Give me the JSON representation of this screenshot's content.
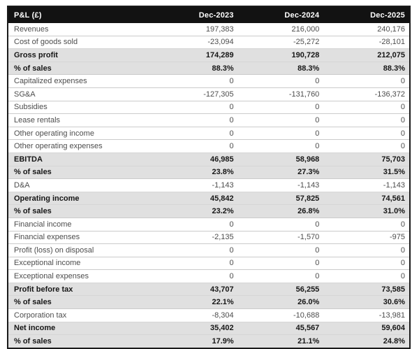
{
  "title": "P&L statement table",
  "colors": {
    "header_bg": "#121212",
    "header_text": "#ffffff",
    "highlight_row_bg": "#e0e0e0",
    "normal_text": "#4d4d4d",
    "bold_text": "#161616",
    "row_border": "#cbcbcb",
    "outer_border": "#1a1a1a"
  },
  "table": {
    "columns": [
      "P&L (£)",
      "Dec-2023",
      "Dec-2024",
      "Dec-2025"
    ],
    "rows": [
      {
        "label": "Revenues",
        "values": [
          "197,383",
          "216,000",
          "240,176"
        ],
        "highlight": false
      },
      {
        "label": "Cost of goods sold",
        "values": [
          "-23,094",
          "-25,272",
          "-28,101"
        ],
        "highlight": false
      },
      {
        "label": "Gross profit",
        "values": [
          "174,289",
          "190,728",
          "212,075"
        ],
        "highlight": true
      },
      {
        "label": "% of sales",
        "values": [
          "88.3%",
          "88.3%",
          "88.3%"
        ],
        "highlight": true
      },
      {
        "label": "Capitalized expenses",
        "values": [
          "0",
          "0",
          "0"
        ],
        "highlight": false
      },
      {
        "label": "SG&A",
        "values": [
          "-127,305",
          "-131,760",
          "-136,372"
        ],
        "highlight": false
      },
      {
        "label": "Subsidies",
        "values": [
          "0",
          "0",
          "0"
        ],
        "highlight": false
      },
      {
        "label": "Lease rentals",
        "values": [
          "0",
          "0",
          "0"
        ],
        "highlight": false
      },
      {
        "label": "Other operating income",
        "values": [
          "0",
          "0",
          "0"
        ],
        "highlight": false
      },
      {
        "label": "Other operating expenses",
        "values": [
          "0",
          "0",
          "0"
        ],
        "highlight": false
      },
      {
        "label": "EBITDA",
        "values": [
          "46,985",
          "58,968",
          "75,703"
        ],
        "highlight": true
      },
      {
        "label": "% of sales",
        "values": [
          "23.8%",
          "27.3%",
          "31.5%"
        ],
        "highlight": true
      },
      {
        "label": "D&A",
        "values": [
          "-1,143",
          "-1,143",
          "-1,143"
        ],
        "highlight": false
      },
      {
        "label": "Operating income",
        "values": [
          "45,842",
          "57,825",
          "74,561"
        ],
        "highlight": true
      },
      {
        "label": "% of sales",
        "values": [
          "23.2%",
          "26.8%",
          "31.0%"
        ],
        "highlight": true
      },
      {
        "label": "Financial income",
        "values": [
          "0",
          "0",
          "0"
        ],
        "highlight": false
      },
      {
        "label": "Financial expenses",
        "values": [
          "-2,135",
          "-1,570",
          "-975"
        ],
        "highlight": false
      },
      {
        "label": "Profit (loss) on disposal",
        "values": [
          "0",
          "0",
          "0"
        ],
        "highlight": false
      },
      {
        "label": "Exceptional income",
        "values": [
          "0",
          "0",
          "0"
        ],
        "highlight": false
      },
      {
        "label": "Exceptional expenses",
        "values": [
          "0",
          "0",
          "0"
        ],
        "highlight": false
      },
      {
        "label": "Profit before tax",
        "values": [
          "43,707",
          "56,255",
          "73,585"
        ],
        "highlight": true
      },
      {
        "label": "% of sales",
        "values": [
          "22.1%",
          "26.0%",
          "30.6%"
        ],
        "highlight": true
      },
      {
        "label": "Corporation tax",
        "values": [
          "-8,304",
          "-10,688",
          "-13,981"
        ],
        "highlight": false
      },
      {
        "label": "Net income",
        "values": [
          "35,402",
          "45,567",
          "59,604"
        ],
        "highlight": true
      },
      {
        "label": "% of sales",
        "values": [
          "17.9%",
          "21.1%",
          "24.8%"
        ],
        "highlight": true
      }
    ]
  }
}
